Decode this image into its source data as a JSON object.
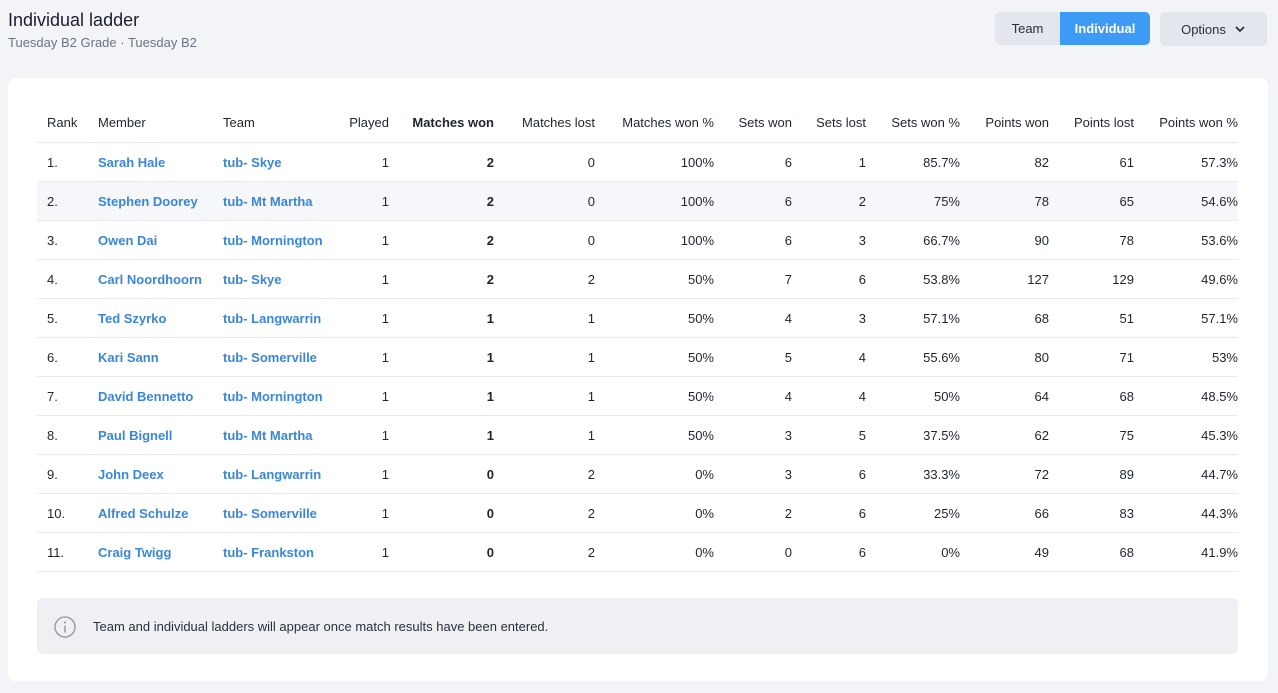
{
  "header": {
    "title": "Individual ladder",
    "subtitle": "Tuesday B2 Grade · Tuesday B2"
  },
  "toggle": {
    "team": "Team",
    "individual": "Individual"
  },
  "options": "Options",
  "table": {
    "columns": [
      "Rank",
      "Member",
      "Team",
      "Played",
      "Matches won",
      "Matches lost",
      "Matches won %",
      "Sets won",
      "Sets lost",
      "Sets won %",
      "Points won",
      "Points lost",
      "Points won %"
    ],
    "rows": [
      [
        "1.",
        "Sarah Hale",
        "tub- Skye",
        "1",
        "2",
        "0",
        "100%",
        "6",
        "1",
        "85.7%",
        "82",
        "61",
        "57.3%"
      ],
      [
        "2.",
        "Stephen Doorey",
        "tub- Mt Martha",
        "1",
        "2",
        "0",
        "100%",
        "6",
        "2",
        "75%",
        "78",
        "65",
        "54.6%"
      ],
      [
        "3.",
        "Owen Dai",
        "tub- Mornington",
        "1",
        "2",
        "0",
        "100%",
        "6",
        "3",
        "66.7%",
        "90",
        "78",
        "53.6%"
      ],
      [
        "4.",
        "Carl Noordhoorn",
        "tub- Skye",
        "1",
        "2",
        "2",
        "50%",
        "7",
        "6",
        "53.8%",
        "127",
        "129",
        "49.6%"
      ],
      [
        "5.",
        "Ted Szyrko",
        "tub- Langwarrin",
        "1",
        "1",
        "1",
        "50%",
        "4",
        "3",
        "57.1%",
        "68",
        "51",
        "57.1%"
      ],
      [
        "6.",
        "Kari Sann",
        "tub- Somerville",
        "1",
        "1",
        "1",
        "50%",
        "5",
        "4",
        "55.6%",
        "80",
        "71",
        "53%"
      ],
      [
        "7.",
        "David Bennetto",
        "tub- Mornington",
        "1",
        "1",
        "1",
        "50%",
        "4",
        "4",
        "50%",
        "64",
        "68",
        "48.5%"
      ],
      [
        "8.",
        "Paul Bignell",
        "tub- Mt Martha",
        "1",
        "1",
        "1",
        "50%",
        "3",
        "5",
        "37.5%",
        "62",
        "75",
        "45.3%"
      ],
      [
        "9.",
        "John Deex",
        "tub- Langwarrin",
        "1",
        "0",
        "2",
        "0%",
        "3",
        "6",
        "33.3%",
        "72",
        "89",
        "44.7%"
      ],
      [
        "10.",
        "Alfred Schulze",
        "tub- Somerville",
        "1",
        "0",
        "2",
        "0%",
        "2",
        "6",
        "25%",
        "66",
        "83",
        "44.3%"
      ],
      [
        "11.",
        "Craig Twigg",
        "tub- Frankston",
        "1",
        "0",
        "2",
        "0%",
        "0",
        "6",
        "0%",
        "49",
        "68",
        "41.9%"
      ]
    ]
  },
  "notice": "Team and individual ladders will appear once match results have been entered."
}
